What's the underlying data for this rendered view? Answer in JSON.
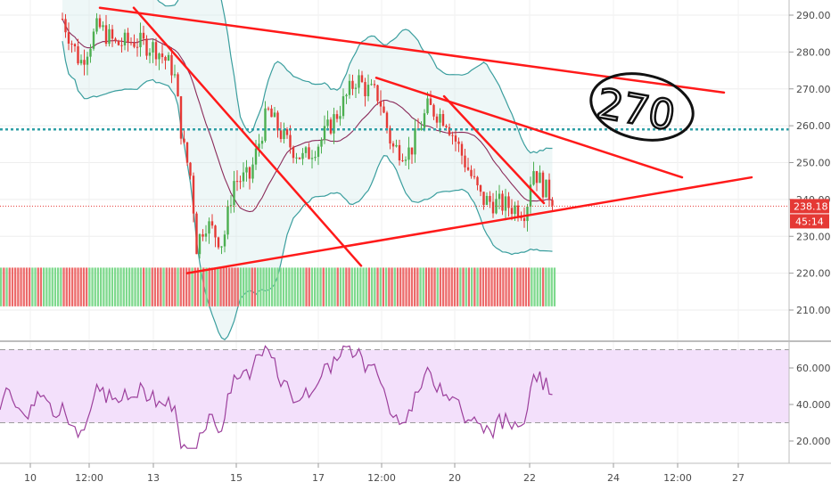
{
  "chart_data": {
    "type": "candlestick",
    "price_axis": {
      "ticks": [
        "290.0000",
        "280.0000",
        "270.0000",
        "260.0000",
        "250.0000",
        "240.0000",
        "230.0000",
        "220.0000",
        "210.0000"
      ],
      "values": [
        290,
        280,
        270,
        260,
        250,
        240,
        230,
        220,
        210
      ]
    },
    "current_price_label": "238.18",
    "countdown_label": "45:14",
    "current_price": 238.18,
    "dotted_level": 259,
    "rsi_axis": {
      "ticks": [
        "60.0000",
        "40.0000",
        "20.0000"
      ],
      "values": [
        60,
        40,
        20
      ],
      "bands": [
        30,
        70
      ]
    },
    "time_axis": {
      "ticks": [
        "10",
        "12:00",
        "13",
        "15",
        "17",
        "12:00",
        "20",
        "22",
        "24",
        "12:00",
        "27"
      ]
    },
    "annotation_text": "270",
    "trendlines": [
      {
        "from": [
          "start",
          292
        ],
        "to": [
          "end",
          269
        ]
      },
      {
        "from": [
          "12:00",
          292
        ],
        "to": [
          "17",
          222
        ]
      },
      {
        "from": [
          "12:00",
          273
        ],
        "to": [
          "24",
          246
        ]
      },
      {
        "from": [
          "20",
          268
        ],
        "to": [
          "22",
          239
        ]
      },
      {
        "from": [
          "14",
          220
        ],
        "to": [
          "26",
          246
        ]
      }
    ],
    "colors": {
      "up": "#4caf50",
      "down": "#e53935",
      "trendline": "#ff1a1a",
      "bollinger": "#3a9e9e",
      "rsi_line": "#9c3f9c",
      "rsi_band": "#f3e0fb",
      "dotted_level": "#2e9fa6",
      "price_tag": "#e53935"
    }
  }
}
